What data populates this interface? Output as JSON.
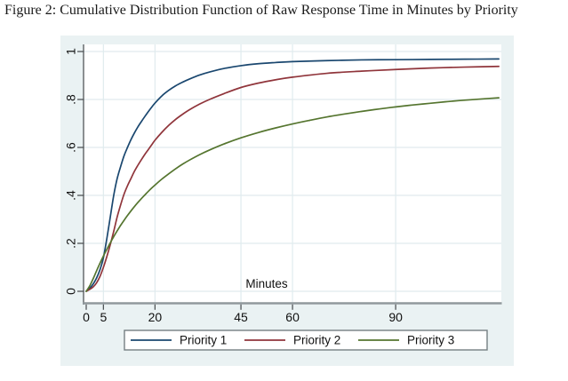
{
  "figure": {
    "caption": "Figure 2: Cumulative Distribution Function of Raw Response Time in Minutes by Priority"
  },
  "chart_data": {
    "type": "line",
    "subtype": "cumulative-distribution-function",
    "title": "",
    "xlabel": "Minutes",
    "ylabel": "",
    "xlim": [
      0,
      120
    ],
    "ylim": [
      0,
      1
    ],
    "grid": true,
    "x_ticks": [
      0,
      5,
      20,
      45,
      60,
      90
    ],
    "y_ticks": [
      {
        "value": 0,
        "label": "0"
      },
      {
        "value": 0.2,
        "label": ".2"
      },
      {
        "value": 0.4,
        "label": ".4"
      },
      {
        "value": 0.6,
        "label": ".6"
      },
      {
        "value": 0.8,
        "label": ".8"
      },
      {
        "value": 1,
        "label": "1"
      }
    ],
    "legend_position": "bottom-box",
    "series": [
      {
        "name": "Priority 1",
        "color": "#1a476f",
        "points": [
          [
            0,
            0
          ],
          [
            1,
            0.012
          ],
          [
            2,
            0.03
          ],
          [
            3,
            0.055
          ],
          [
            4,
            0.09
          ],
          [
            5,
            0.14
          ],
          [
            6,
            0.22
          ],
          [
            7,
            0.31
          ],
          [
            8,
            0.4
          ],
          [
            9,
            0.47
          ],
          [
            10,
            0.52
          ],
          [
            11,
            0.565
          ],
          [
            12,
            0.6
          ],
          [
            13,
            0.632
          ],
          [
            14,
            0.66
          ],
          [
            15,
            0.685
          ],
          [
            16,
            0.707
          ],
          [
            17,
            0.728
          ],
          [
            18,
            0.748
          ],
          [
            19,
            0.767
          ],
          [
            20,
            0.785
          ],
          [
            22,
            0.815
          ],
          [
            24,
            0.838
          ],
          [
            26,
            0.857
          ],
          [
            28,
            0.872
          ],
          [
            30,
            0.885
          ],
          [
            33,
            0.902
          ],
          [
            36,
            0.915
          ],
          [
            40,
            0.929
          ],
          [
            45,
            0.941
          ],
          [
            50,
            0.949
          ],
          [
            55,
            0.954
          ],
          [
            60,
            0.958
          ],
          [
            70,
            0.962
          ],
          [
            80,
            0.965
          ],
          [
            90,
            0.966
          ],
          [
            100,
            0.967
          ],
          [
            110,
            0.968
          ],
          [
            120,
            0.969
          ]
        ]
      },
      {
        "name": "Priority 2",
        "color": "#90353b",
        "points": [
          [
            0,
            0
          ],
          [
            1,
            0.008
          ],
          [
            2,
            0.018
          ],
          [
            3,
            0.035
          ],
          [
            4,
            0.062
          ],
          [
            5,
            0.1
          ],
          [
            6,
            0.145
          ],
          [
            7,
            0.195
          ],
          [
            8,
            0.25
          ],
          [
            9,
            0.31
          ],
          [
            10,
            0.36
          ],
          [
            11,
            0.405
          ],
          [
            12,
            0.44
          ],
          [
            13,
            0.47
          ],
          [
            14,
            0.5
          ],
          [
            15,
            0.525
          ],
          [
            16,
            0.548
          ],
          [
            17,
            0.57
          ],
          [
            18,
            0.59
          ],
          [
            19,
            0.61
          ],
          [
            20,
            0.63
          ],
          [
            22,
            0.663
          ],
          [
            24,
            0.692
          ],
          [
            26,
            0.717
          ],
          [
            28,
            0.738
          ],
          [
            30,
            0.757
          ],
          [
            33,
            0.781
          ],
          [
            36,
            0.801
          ],
          [
            40,
            0.824
          ],
          [
            45,
            0.85
          ],
          [
            50,
            0.868
          ],
          [
            55,
            0.882
          ],
          [
            60,
            0.893
          ],
          [
            70,
            0.909
          ],
          [
            80,
            0.918
          ],
          [
            90,
            0.925
          ],
          [
            100,
            0.931
          ],
          [
            110,
            0.935
          ],
          [
            120,
            0.938
          ]
        ]
      },
      {
        "name": "Priority 3",
        "color": "#55752f",
        "points": [
          [
            0,
            0
          ],
          [
            1,
            0.022
          ],
          [
            2,
            0.052
          ],
          [
            3,
            0.085
          ],
          [
            4,
            0.117
          ],
          [
            5,
            0.147
          ],
          [
            6,
            0.175
          ],
          [
            7,
            0.202
          ],
          [
            8,
            0.228
          ],
          [
            9,
            0.252
          ],
          [
            10,
            0.275
          ],
          [
            11,
            0.296
          ],
          [
            12,
            0.316
          ],
          [
            13,
            0.335
          ],
          [
            14,
            0.353
          ],
          [
            15,
            0.37
          ],
          [
            16,
            0.386
          ],
          [
            17,
            0.401
          ],
          [
            18,
            0.416
          ],
          [
            19,
            0.43
          ],
          [
            20,
            0.443
          ],
          [
            22,
            0.468
          ],
          [
            24,
            0.49
          ],
          [
            26,
            0.511
          ],
          [
            28,
            0.53
          ],
          [
            30,
            0.547
          ],
          [
            33,
            0.57
          ],
          [
            36,
            0.59
          ],
          [
            40,
            0.614
          ],
          [
            45,
            0.64
          ],
          [
            50,
            0.662
          ],
          [
            55,
            0.681
          ],
          [
            60,
            0.698
          ],
          [
            65,
            0.713
          ],
          [
            70,
            0.727
          ],
          [
            75,
            0.739
          ],
          [
            80,
            0.75
          ],
          [
            85,
            0.76
          ],
          [
            90,
            0.769
          ],
          [
            95,
            0.777
          ],
          [
            100,
            0.784
          ],
          [
            105,
            0.791
          ],
          [
            110,
            0.797
          ],
          [
            115,
            0.802
          ],
          [
            120,
            0.807
          ]
        ]
      }
    ],
    "colors": {
      "graph_background": "#eaf2f3",
      "plot_background": "#ffffff",
      "gridline": "#e0ebee",
      "x_axis_line": "#8f989c",
      "y_axis_line": "#45494c",
      "tick": "#45494c",
      "tick_label": "#111111",
      "legend_background": "#ffffff",
      "legend_border": "#767f83"
    }
  }
}
